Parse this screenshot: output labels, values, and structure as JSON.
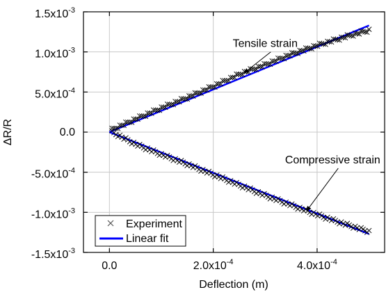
{
  "chart_data": {
    "type": "scatter",
    "title": "",
    "xlabel": "Deflection (m)",
    "ylabel": "ΔR/R",
    "xlim": [
      -5e-05,
      0.00053
    ],
    "ylim": [
      -0.0015,
      0.0015
    ],
    "grid": true,
    "legend_position": "bottom-left",
    "x_ticks": [
      {
        "value": 0,
        "base": "0.0",
        "exp": ""
      },
      {
        "value": 0.0002,
        "base": "2.0x10",
        "exp": "-4"
      },
      {
        "value": 0.0004,
        "base": "4.0x10",
        "exp": "-4"
      }
    ],
    "y_ticks": [
      {
        "value": 0.0015,
        "base": "1.5x10",
        "exp": "-3"
      },
      {
        "value": 0.001,
        "base": "1.0x10",
        "exp": "-3"
      },
      {
        "value": 0.0005,
        "base": "5.0x10",
        "exp": "-4"
      },
      {
        "value": 0,
        "base": "0.0",
        "exp": ""
      },
      {
        "value": -0.0005,
        "base": "-5.0x10",
        "exp": "-4"
      },
      {
        "value": -0.001,
        "base": "-1.0x10",
        "exp": "-3"
      },
      {
        "value": -0.0015,
        "base": "-1.5x10",
        "exp": "-3"
      }
    ],
    "series": [
      {
        "name": "Experiment",
        "marker": "x",
        "color": "#000000",
        "segments": [
          {
            "label": "Tensile strain",
            "x": [
              5e-06,
              5e-05,
              0.0001,
              0.00015,
              0.0002,
              0.00025,
              0.0003,
              0.00035,
              0.0004,
              0.00045,
              0.0005
            ],
            "y": [
              3e-05,
              0.00016,
              0.0003,
              0.00043,
              0.00057,
              0.00072,
              0.00084,
              0.00097,
              0.00108,
              0.00118,
              0.00127
            ]
          },
          {
            "label": "Compressive strain",
            "x": [
              5e-06,
              5e-05,
              0.0001,
              0.00015,
              0.0002,
              0.00025,
              0.0003,
              0.00035,
              0.0004,
              0.00045,
              0.0005
            ],
            "y": [
              0.0,
              -0.00015,
              -0.00028,
              -0.0004,
              -0.00053,
              -0.00066,
              -0.00079,
              -0.00091,
              -0.00103,
              -0.00114,
              -0.00124
            ]
          }
        ]
      },
      {
        "name": "Linear fit",
        "color": "#0000ff",
        "segments": [
          {
            "x": [
              0,
              0.0005
            ],
            "y": [
              0.0,
              0.00133
            ]
          },
          {
            "x": [
              0,
              0.0005
            ],
            "y": [
              0.0,
              -0.00127
            ]
          }
        ]
      }
    ],
    "annotations": [
      {
        "text": "Tensile strain",
        "x": 0.0003,
        "y": 0.00106,
        "arrow_to": [
          0.00026,
          0.00074
        ]
      },
      {
        "text": "Compressive strain",
        "x": 0.00043,
        "y": -0.00039,
        "arrow_to": [
          0.00038,
          -0.00098
        ]
      }
    ]
  }
}
